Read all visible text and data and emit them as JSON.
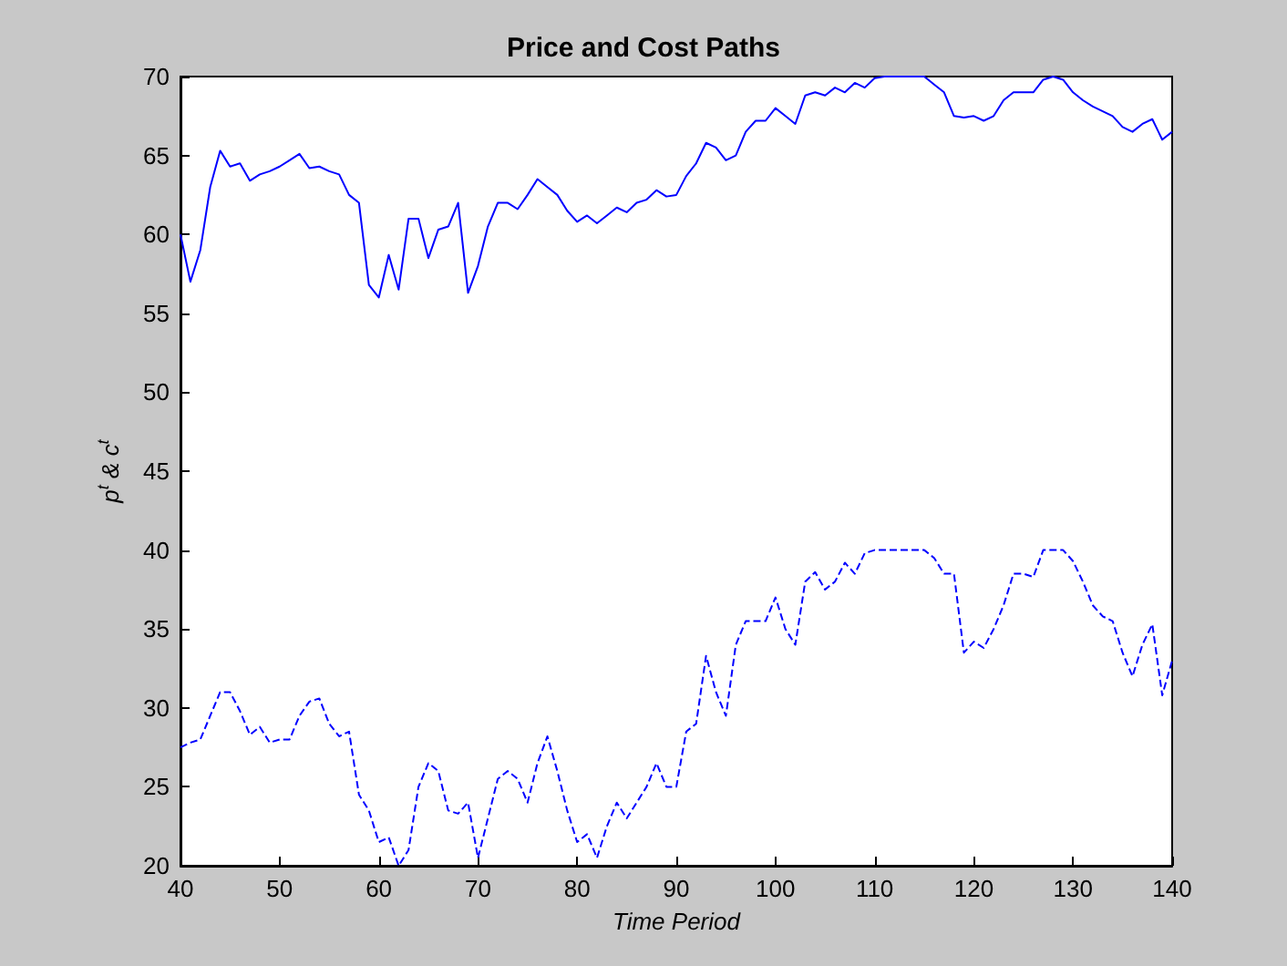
{
  "chart_data": {
    "type": "line",
    "title": "Price and Cost Paths",
    "xlabel": "Time Period",
    "ylabel": "p$^{t}$ & c$^{t}$",
    "x": [
      40,
      41,
      42,
      43,
      44,
      45,
      46,
      47,
      48,
      49,
      50,
      51,
      52,
      53,
      54,
      55,
      56,
      57,
      58,
      59,
      60,
      61,
      62,
      63,
      64,
      65,
      66,
      67,
      68,
      69,
      70,
      71,
      72,
      73,
      74,
      75,
      76,
      77,
      78,
      79,
      80,
      81,
      82,
      83,
      84,
      85,
      86,
      87,
      88,
      89,
      90,
      91,
      92,
      93,
      94,
      95,
      96,
      97,
      98,
      99,
      100,
      101,
      102,
      103,
      104,
      105,
      106,
      107,
      108,
      109,
      110,
      111,
      112,
      113,
      114,
      115,
      116,
      117,
      118,
      119,
      120,
      121,
      122,
      123,
      124,
      125,
      126,
      127,
      128,
      129,
      130,
      131,
      132,
      133,
      134,
      135,
      136,
      137,
      138,
      139,
      140
    ],
    "series": [
      {
        "color": "#0000ff",
        "line_style": "solid",
        "values": [
          60,
          57,
          59,
          63,
          65.3,
          64.3,
          64.5,
          63.4,
          63.8,
          64,
          64.3,
          64.7,
          65.1,
          64.2,
          64.3,
          64,
          63.8,
          62.5,
          62,
          56.8,
          56,
          58.7,
          56.5,
          61,
          61,
          58.5,
          60.3,
          60.5,
          62,
          56.3,
          58,
          60.5,
          62,
          62,
          61.6,
          62.5,
          63.5,
          63,
          62.5,
          61.5,
          60.8,
          61.2,
          60.7,
          61.2,
          61.7,
          61.4,
          62,
          62.2,
          62.8,
          62.4,
          62.5,
          63.7,
          64.5,
          65.8,
          65.5,
          64.7,
          65,
          66.5,
          67.2,
          67.2,
          68,
          67.5,
          67,
          68.8,
          69,
          68.8,
          69.3,
          69,
          69.6,
          69.3,
          69.9,
          70,
          70,
          70,
          70,
          70,
          69.5,
          69,
          67.5,
          67.4,
          67.5,
          67.2,
          67.5,
          68.5,
          69,
          69,
          69,
          69.8,
          70,
          69.8,
          69,
          68.5,
          68.1,
          67.8,
          67.5,
          66.8,
          66.5,
          67,
          67.3,
          66,
          66.5
        ]
      },
      {
        "color": "#0000ff",
        "line_style": "dashed",
        "values": [
          27.5,
          27.8,
          28,
          29.5,
          31,
          31,
          29.8,
          28.3,
          28.8,
          27.8,
          28,
          28,
          29.5,
          30.4,
          30.6,
          29,
          28.2,
          28.5,
          24.5,
          23.5,
          21.5,
          21.8,
          20,
          21,
          25,
          26.5,
          26,
          23.5,
          23.3,
          24,
          20.5,
          23,
          25.5,
          26,
          25.5,
          24,
          26.5,
          28.2,
          26,
          23.5,
          21.5,
          22,
          20.5,
          22.5,
          24,
          23,
          24,
          25,
          26.5,
          25,
          25,
          28.5,
          29,
          33.3,
          31,
          29.5,
          34,
          35.5,
          35.5,
          35.5,
          37,
          35,
          34,
          38,
          38.6,
          37.5,
          38,
          39.2,
          38.5,
          39.8,
          40,
          40,
          40,
          40,
          40,
          40,
          39.5,
          38.5,
          38.5,
          33.5,
          34.2,
          33.8,
          35,
          36.5,
          38.5,
          38.5,
          38.3,
          40,
          40,
          40,
          39.3,
          38,
          36.5,
          35.8,
          35.5,
          33.5,
          32,
          34,
          35.3,
          30.8,
          33
        ]
      }
    ],
    "xlim": [
      40,
      140
    ],
    "xticks": [
      40,
      50,
      60,
      70,
      80,
      90,
      100,
      110,
      120,
      130,
      140
    ],
    "ylim": [
      20,
      70
    ],
    "yticks": [
      20,
      25,
      30,
      35,
      40,
      45,
      50,
      55,
      60,
      65,
      70
    ],
    "grid": false,
    "marker": "none"
  }
}
